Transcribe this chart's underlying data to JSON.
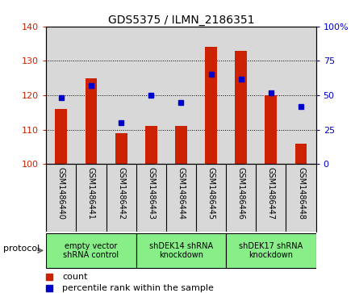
{
  "title": "GDS5375 / ILMN_2186351",
  "samples": [
    "GSM1486440",
    "GSM1486441",
    "GSM1486442",
    "GSM1486443",
    "GSM1486444",
    "GSM1486445",
    "GSM1486446",
    "GSM1486447",
    "GSM1486448"
  ],
  "counts": [
    116,
    125,
    109,
    111,
    111,
    134,
    133,
    120,
    106
  ],
  "percentile_ranks": [
    48,
    57,
    30,
    50,
    45,
    65,
    62,
    52,
    42
  ],
  "ylim_left": [
    100,
    140
  ],
  "ylim_right": [
    0,
    100
  ],
  "yticks_left": [
    100,
    110,
    120,
    130,
    140
  ],
  "yticks_right": [
    0,
    25,
    50,
    75,
    100
  ],
  "bar_color": "#cc2200",
  "dot_color": "#0000cc",
  "group_defs": [
    {
      "start": 0,
      "end": 3,
      "label": "empty vector\nshRNA control"
    },
    {
      "start": 3,
      "end": 6,
      "label": "shDEK14 shRNA\nknockdown"
    },
    {
      "start": 6,
      "end": 9,
      "label": "shDEK17 shRNA\nknockdown"
    }
  ],
  "group_color": "#88ee88",
  "protocol_label": "protocol",
  "legend_count": "count",
  "legend_percentile": "percentile rank within the sample",
  "bar_width": 0.4,
  "background_color": "#ffffff",
  "plot_bg_color": "#d8d8d8",
  "sample_bg_color": "#d8d8d8"
}
